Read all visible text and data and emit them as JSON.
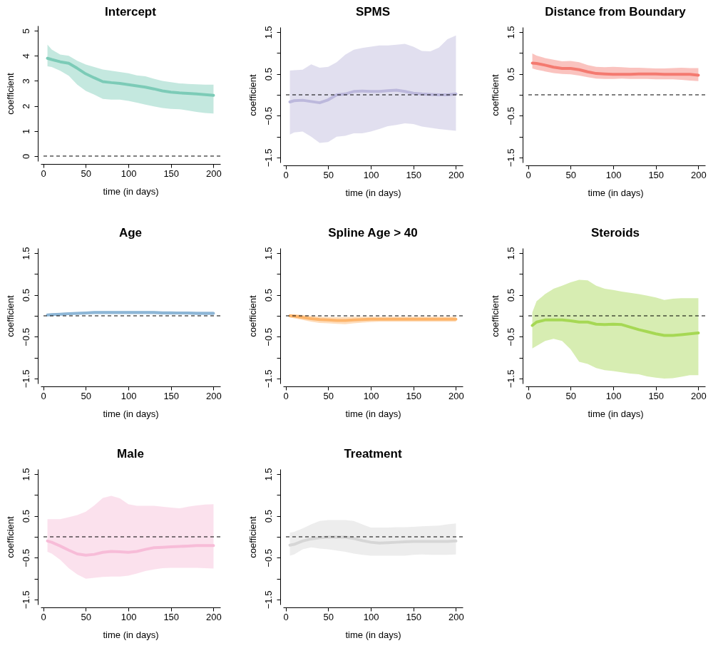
{
  "chart_data": [
    {
      "type": "line",
      "title": "Intercept",
      "xlabel": "time (in days)",
      "ylabel": "coefficient",
      "x": [
        5,
        10,
        20,
        30,
        40,
        50,
        60,
        70,
        80,
        90,
        100,
        110,
        120,
        130,
        140,
        150,
        160,
        170,
        180,
        190,
        200
      ],
      "xlim": [
        -3,
        208
      ],
      "xticks": [
        0,
        50,
        100,
        150,
        200
      ],
      "ylim": [
        -0.2,
        5.2
      ],
      "yticks": [
        0,
        1,
        2,
        3,
        4,
        5
      ],
      "grid": false,
      "ref_lines": [
        {
          "axis": "y",
          "value": 0,
          "line_style": "dashed"
        }
      ],
      "series": [
        {
          "color": "#7ccbb7",
          "values": [
            3.9,
            3.85,
            3.76,
            3.7,
            3.5,
            3.28,
            3.12,
            2.97,
            2.93,
            2.9,
            2.85,
            2.8,
            2.75,
            2.68,
            2.6,
            2.55,
            2.52,
            2.5,
            2.48,
            2.45,
            2.42
          ],
          "lower": [
            3.58,
            3.55,
            3.4,
            3.2,
            2.85,
            2.6,
            2.45,
            2.28,
            2.25,
            2.25,
            2.2,
            2.13,
            2.05,
            1.98,
            1.92,
            1.88,
            1.87,
            1.82,
            1.76,
            1.72,
            1.7
          ],
          "upper": [
            4.45,
            4.25,
            4.05,
            4.0,
            3.8,
            3.65,
            3.55,
            3.45,
            3.4,
            3.35,
            3.3,
            3.22,
            3.18,
            3.08,
            3.0,
            2.95,
            2.9,
            2.88,
            2.86,
            2.85,
            2.85
          ]
        }
      ]
    },
    {
      "type": "line",
      "title": "SPMS",
      "xlabel": "time (in days)",
      "ylabel": "coefficient",
      "x": [
        5,
        10,
        20,
        30,
        40,
        50,
        60,
        70,
        80,
        90,
        100,
        110,
        120,
        130,
        140,
        150,
        160,
        170,
        180,
        190,
        200
      ],
      "xlim": [
        -3,
        208
      ],
      "xticks": [
        0,
        50,
        100,
        150,
        200
      ],
      "ylim": [
        -1.62,
        1.62
      ],
      "yticks": [
        {
          "value": -1.5,
          "label": "−1.5"
        },
        {
          "value": -1,
          "label": null
        },
        {
          "value": -0.5,
          "label": "−0.5"
        },
        {
          "value": 0,
          "label": null
        },
        {
          "value": 0.5,
          "label": "0.5"
        },
        {
          "value": 1,
          "label": null
        },
        {
          "value": 1.5,
          "label": "1.5"
        }
      ],
      "grid": false,
      "ref_lines": [
        {
          "axis": "y",
          "value": 0,
          "line_style": "dashed"
        }
      ],
      "series": [
        {
          "color": "#bcb8dc",
          "values": [
            -0.17,
            -0.14,
            -0.13,
            -0.16,
            -0.19,
            -0.12,
            0.0,
            0.02,
            0.08,
            0.09,
            0.08,
            0.08,
            0.1,
            0.11,
            0.08,
            0.04,
            0.02,
            0.01,
            0.0,
            0.0,
            0.02
          ],
          "lower": [
            -0.95,
            -0.9,
            -0.88,
            -1.0,
            -1.15,
            -1.13,
            -1.0,
            -0.98,
            -0.92,
            -0.92,
            -0.88,
            -0.82,
            -0.75,
            -0.72,
            -0.68,
            -0.7,
            -0.76,
            -0.79,
            -0.82,
            -0.84,
            -0.86
          ],
          "upper": [
            0.58,
            0.59,
            0.6,
            0.73,
            0.65,
            0.67,
            0.78,
            0.96,
            1.08,
            1.12,
            1.15,
            1.18,
            1.18,
            1.2,
            1.22,
            1.15,
            1.05,
            1.04,
            1.13,
            1.33,
            1.42
          ]
        }
      ]
    },
    {
      "type": "line",
      "title": "Distance from Boundary",
      "xlabel": "time (in days)",
      "ylabel": "coefficient",
      "x": [
        5,
        10,
        20,
        30,
        40,
        50,
        60,
        70,
        80,
        90,
        100,
        110,
        120,
        130,
        140,
        150,
        160,
        170,
        180,
        190,
        200
      ],
      "xlim": [
        -3,
        208
      ],
      "xticks": [
        0,
        50,
        100,
        150,
        200
      ],
      "ylim": [
        -1.62,
        1.62
      ],
      "yticks": [
        {
          "value": -1.5,
          "label": "−1.5"
        },
        {
          "value": -1,
          "label": null
        },
        {
          "value": -0.5,
          "label": "−0.5"
        },
        {
          "value": 0,
          "label": null
        },
        {
          "value": 0.5,
          "label": "0.5"
        },
        {
          "value": 1,
          "label": null
        },
        {
          "value": 1.5,
          "label": "1.5"
        }
      ],
      "grid": false,
      "ref_lines": [
        {
          "axis": "y",
          "value": 0,
          "line_style": "dashed"
        }
      ],
      "series": [
        {
          "color": "#f47a70",
          "values": [
            0.76,
            0.75,
            0.71,
            0.66,
            0.63,
            0.63,
            0.6,
            0.55,
            0.51,
            0.5,
            0.49,
            0.49,
            0.49,
            0.5,
            0.5,
            0.5,
            0.49,
            0.49,
            0.49,
            0.49,
            0.47
          ],
          "lower": [
            0.63,
            0.6,
            0.56,
            0.52,
            0.5,
            0.49,
            0.46,
            0.42,
            0.39,
            0.38,
            0.38,
            0.39,
            0.38,
            0.38,
            0.38,
            0.37,
            0.37,
            0.37,
            0.36,
            0.34,
            0.33
          ],
          "upper": [
            0.99,
            0.94,
            0.88,
            0.84,
            0.8,
            0.81,
            0.78,
            0.71,
            0.67,
            0.66,
            0.67,
            0.66,
            0.65,
            0.65,
            0.64,
            0.63,
            0.63,
            0.64,
            0.65,
            0.64,
            0.64
          ]
        }
      ]
    },
    {
      "type": "line",
      "title": "Age",
      "xlabel": "time (in days)",
      "ylabel": "coefficient",
      "x": [
        5,
        10,
        20,
        30,
        40,
        50,
        60,
        70,
        80,
        90,
        100,
        110,
        120,
        130,
        140,
        150,
        160,
        170,
        180,
        190,
        200
      ],
      "xlim": [
        -3,
        208
      ],
      "xticks": [
        0,
        50,
        100,
        150,
        200
      ],
      "ylim": [
        -1.62,
        1.62
      ],
      "yticks": [
        {
          "value": -1.5,
          "label": "−1.5"
        },
        {
          "value": -1,
          "label": null
        },
        {
          "value": -0.5,
          "label": "−0.5"
        },
        {
          "value": 0,
          "label": null
        },
        {
          "value": 0.5,
          "label": "0.5"
        },
        {
          "value": 1,
          "label": null
        },
        {
          "value": 1.5,
          "label": "1.5"
        }
      ],
      "grid": false,
      "ref_lines": [
        {
          "axis": "y",
          "value": 0,
          "line_style": "dashed"
        }
      ],
      "series": [
        {
          "color": "#8db6d6",
          "values": [
            0.02,
            0.03,
            0.04,
            0.05,
            0.06,
            0.07,
            0.08,
            0.08,
            0.08,
            0.08,
            0.08,
            0.08,
            0.08,
            0.08,
            0.07,
            0.07,
            0.07,
            0.07,
            0.06,
            0.06,
            0.06
          ],
          "lower": [
            -0.01,
            0.0,
            0.01,
            0.02,
            0.03,
            0.03,
            0.04,
            0.04,
            0.04,
            0.04,
            0.04,
            0.04,
            0.04,
            0.04,
            0.03,
            0.03,
            0.03,
            0.03,
            0.02,
            0.02,
            0.02
          ],
          "upper": [
            0.04,
            0.05,
            0.07,
            0.08,
            0.09,
            0.1,
            0.11,
            0.11,
            0.11,
            0.11,
            0.11,
            0.11,
            0.11,
            0.11,
            0.11,
            0.11,
            0.1,
            0.1,
            0.1,
            0.1,
            0.1
          ]
        }
      ]
    },
    {
      "type": "line",
      "title": "Spline Age > 40",
      "xlabel": "time (in days)",
      "ylabel": "coefficient",
      "x": [
        5,
        10,
        20,
        30,
        40,
        50,
        60,
        70,
        80,
        90,
        100,
        110,
        120,
        130,
        140,
        150,
        160,
        170,
        180,
        190,
        200
      ],
      "xlim": [
        -3,
        208
      ],
      "xticks": [
        0,
        50,
        100,
        150,
        200
      ],
      "ylim": [
        -1.62,
        1.62
      ],
      "yticks": [
        {
          "value": -1.5,
          "label": "−1.5"
        },
        {
          "value": -1,
          "label": null
        },
        {
          "value": -0.5,
          "label": "−0.5"
        },
        {
          "value": 0,
          "label": null
        },
        {
          "value": 0.5,
          "label": "0.5"
        },
        {
          "value": 1,
          "label": null
        },
        {
          "value": 1.5,
          "label": "1.5"
        }
      ],
      "grid": false,
      "ref_lines": [
        {
          "axis": "y",
          "value": 0,
          "line_style": "dashed"
        }
      ],
      "series": [
        {
          "color": "#fdb46a",
          "values": [
            0.0,
            -0.01,
            -0.04,
            -0.07,
            -0.09,
            -0.1,
            -0.11,
            -0.11,
            -0.1,
            -0.09,
            -0.08,
            -0.08,
            -0.08,
            -0.08,
            -0.08,
            -0.08,
            -0.08,
            -0.08,
            -0.08,
            -0.08,
            -0.08
          ],
          "lower": [
            -0.04,
            -0.06,
            -0.1,
            -0.14,
            -0.17,
            -0.18,
            -0.19,
            -0.2,
            -0.18,
            -0.16,
            -0.15,
            -0.14,
            -0.14,
            -0.14,
            -0.14,
            -0.14,
            -0.14,
            -0.14,
            -0.14,
            -0.14,
            -0.14
          ],
          "upper": [
            0.04,
            0.04,
            0.02,
            0.0,
            -0.02,
            -0.03,
            -0.03,
            -0.03,
            -0.02,
            -0.02,
            -0.02,
            -0.02,
            -0.02,
            -0.02,
            -0.02,
            -0.02,
            -0.02,
            -0.02,
            -0.02,
            -0.02,
            -0.02
          ]
        }
      ]
    },
    {
      "type": "line",
      "title": "Steroids",
      "xlabel": "time (in days)",
      "ylabel": "coefficient",
      "x": [
        5,
        10,
        20,
        30,
        40,
        50,
        60,
        70,
        80,
        90,
        100,
        110,
        120,
        130,
        140,
        150,
        160,
        170,
        180,
        190,
        200
      ],
      "xlim": [
        -3,
        208
      ],
      "xticks": [
        0,
        50,
        100,
        150,
        200
      ],
      "ylim": [
        -1.62,
        1.62
      ],
      "yticks": [
        {
          "value": -1.5,
          "label": "−1.5"
        },
        {
          "value": -1,
          "label": null
        },
        {
          "value": -0.5,
          "label": "−0.5"
        },
        {
          "value": 0,
          "label": null
        },
        {
          "value": 0.5,
          "label": "0.5"
        },
        {
          "value": 1,
          "label": null
        },
        {
          "value": 1.5,
          "label": "1.5"
        }
      ],
      "grid": false,
      "ref_lines": [
        {
          "axis": "y",
          "value": 0,
          "line_style": "dashed"
        }
      ],
      "series": [
        {
          "color": "#a6d854",
          "values": [
            -0.23,
            -0.15,
            -0.1,
            -0.1,
            -0.1,
            -0.12,
            -0.15,
            -0.15,
            -0.2,
            -0.21,
            -0.2,
            -0.21,
            -0.27,
            -0.33,
            -0.38,
            -0.43,
            -0.47,
            -0.47,
            -0.45,
            -0.43,
            -0.41
          ],
          "lower": [
            -0.78,
            -0.72,
            -0.6,
            -0.55,
            -0.6,
            -0.8,
            -1.1,
            -1.15,
            -1.25,
            -1.3,
            -1.32,
            -1.35,
            -1.38,
            -1.4,
            -1.45,
            -1.48,
            -1.5,
            -1.49,
            -1.46,
            -1.42,
            -1.42
          ],
          "upper": [
            0.08,
            0.35,
            0.52,
            0.65,
            0.72,
            0.8,
            0.86,
            0.85,
            0.72,
            0.65,
            0.62,
            0.58,
            0.55,
            0.52,
            0.48,
            0.44,
            0.38,
            0.41,
            0.42,
            0.42,
            0.42
          ]
        }
      ]
    },
    {
      "type": "line",
      "title": "Male",
      "xlabel": "time (in days)",
      "ylabel": "coefficient",
      "x": [
        5,
        10,
        20,
        30,
        40,
        50,
        60,
        70,
        80,
        90,
        100,
        110,
        120,
        130,
        140,
        150,
        160,
        170,
        180,
        190,
        200
      ],
      "xlim": [
        -3,
        208
      ],
      "xticks": [
        0,
        50,
        100,
        150,
        200
      ],
      "ylim": [
        -1.62,
        1.62
      ],
      "yticks": [
        {
          "value": -1.5,
          "label": "−1.5"
        },
        {
          "value": -1,
          "label": null
        },
        {
          "value": -0.5,
          "label": "−0.5"
        },
        {
          "value": 0,
          "label": null
        },
        {
          "value": 0.5,
          "label": "0.5"
        },
        {
          "value": 1,
          "label": null
        },
        {
          "value": 1.5,
          "label": "1.5"
        }
      ],
      "grid": false,
      "ref_lines": [
        {
          "axis": "y",
          "value": 0,
          "line_style": "dashed"
        }
      ],
      "series": [
        {
          "color": "#f7bcd8",
          "values": [
            -0.1,
            -0.13,
            -0.22,
            -0.32,
            -0.41,
            -0.44,
            -0.42,
            -0.37,
            -0.35,
            -0.36,
            -0.37,
            -0.35,
            -0.3,
            -0.26,
            -0.25,
            -0.24,
            -0.23,
            -0.22,
            -0.21,
            -0.21,
            -0.21
          ],
          "lower": [
            -0.36,
            -0.4,
            -0.55,
            -0.75,
            -0.9,
            -1.0,
            -0.98,
            -0.96,
            -0.95,
            -0.95,
            -0.93,
            -0.88,
            -0.82,
            -0.78,
            -0.75,
            -0.74,
            -0.74,
            -0.74,
            -0.74,
            -0.75,
            -0.76
          ],
          "upper": [
            0.42,
            0.42,
            0.42,
            0.47,
            0.52,
            0.6,
            0.75,
            0.93,
            0.98,
            0.92,
            0.78,
            0.74,
            0.74,
            0.74,
            0.72,
            0.7,
            0.68,
            0.72,
            0.75,
            0.77,
            0.78
          ]
        }
      ]
    },
    {
      "type": "line",
      "title": "Treatment",
      "xlabel": "time (in days)",
      "ylabel": "coefficient",
      "x": [
        5,
        10,
        20,
        30,
        40,
        50,
        60,
        70,
        80,
        90,
        100,
        110,
        120,
        130,
        140,
        150,
        160,
        170,
        180,
        190,
        200
      ],
      "xlim": [
        -3,
        208
      ],
      "xticks": [
        0,
        50,
        100,
        150,
        200
      ],
      "ylim": [
        -1.62,
        1.62
      ],
      "yticks": [
        {
          "value": -1.5,
          "label": "−1.5"
        },
        {
          "value": -1,
          "label": null
        },
        {
          "value": -0.5,
          "label": "−0.5"
        },
        {
          "value": 0,
          "label": null
        },
        {
          "value": 0.5,
          "label": "0.5"
        },
        {
          "value": 1,
          "label": null
        },
        {
          "value": 1.5,
          "label": "1.5"
        }
      ],
      "grid": false,
      "ref_lines": [
        {
          "axis": "y",
          "value": 0,
          "line_style": "dashed"
        }
      ],
      "series": [
        {
          "color": "#d6d6d6",
          "values": [
            -0.2,
            -0.18,
            -0.1,
            -0.05,
            -0.02,
            -0.01,
            -0.01,
            -0.01,
            -0.04,
            -0.09,
            -0.13,
            -0.15,
            -0.14,
            -0.13,
            -0.12,
            -0.11,
            -0.11,
            -0.11,
            -0.11,
            -0.11,
            -0.1
          ],
          "lower": [
            -0.45,
            -0.42,
            -0.3,
            -0.25,
            -0.28,
            -0.3,
            -0.33,
            -0.36,
            -0.4,
            -0.43,
            -0.45,
            -0.45,
            -0.45,
            -0.45,
            -0.45,
            -0.43,
            -0.42,
            -0.43,
            -0.43,
            -0.43,
            -0.42
          ],
          "upper": [
            0.1,
            0.12,
            0.2,
            0.3,
            0.38,
            0.4,
            0.4,
            0.4,
            0.38,
            0.3,
            0.22,
            0.22,
            0.22,
            0.23,
            0.23,
            0.24,
            0.25,
            0.26,
            0.27,
            0.3,
            0.32
          ]
        }
      ]
    }
  ]
}
